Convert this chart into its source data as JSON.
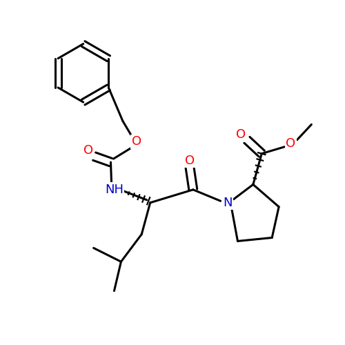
{
  "background_color": "#ffffff",
  "bond_color": "#000000",
  "o_color": "#ff0000",
  "n_color": "#0000cc",
  "line_width": 2.2,
  "figsize": [
    5.0,
    5.0
  ],
  "dpi": 100,
  "xlim": [
    0,
    10
  ],
  "ylim": [
    0,
    10
  ]
}
